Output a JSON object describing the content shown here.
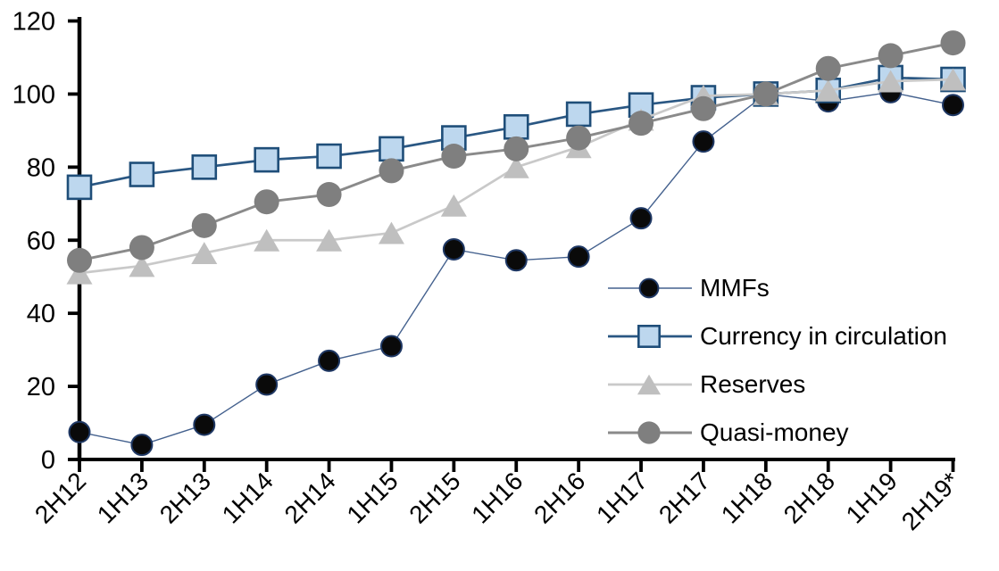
{
  "chart_data": {
    "type": "line",
    "title": "",
    "xlabel": "",
    "ylabel": "",
    "ylim": [
      0,
      120
    ],
    "yticks": [
      0,
      20,
      40,
      60,
      80,
      100,
      120
    ],
    "grid": false,
    "legend_position": "inside-right",
    "background_color": "#FFFFFF",
    "axis_color": "#000000",
    "categories": [
      "2H12",
      "1H13",
      "2H13",
      "1H14",
      "2H14",
      "1H15",
      "2H15",
      "1H16",
      "2H16",
      "1H17",
      "2H17",
      "1H18",
      "2H18",
      "1H19",
      "2H19*"
    ],
    "series": [
      {
        "name": "MMFs",
        "marker": "circle",
        "values": [
          7.5,
          4,
          9.5,
          20.5,
          27,
          31,
          57.5,
          54.5,
          55.5,
          66,
          87,
          100,
          98,
          100.5,
          97
        ],
        "line_color": "#44618E",
        "line_width": 1.4,
        "marker_fill": "#0A0A0A",
        "marker_stroke": "#1F3864",
        "marker_stroke_width": 2,
        "marker_size": 23
      },
      {
        "name": "Currency in circulation",
        "marker": "square",
        "values": [
          74.5,
          78,
          80,
          82,
          83,
          85,
          88,
          91,
          94.5,
          97,
          99,
          100,
          101,
          104.5,
          104
        ],
        "line_color": "#2A5783",
        "line_width": 2.7,
        "marker_fill": "#BDD7EE",
        "marker_stroke": "#1F4E79",
        "marker_stroke_width": 2.6,
        "marker_size": 26
      },
      {
        "name": "Reserves",
        "marker": "triangle",
        "values": [
          51,
          53,
          56.5,
          60,
          60,
          62,
          69.5,
          80,
          85.5,
          93,
          99.5,
          100,
          101,
          103.5,
          104
        ],
        "line_color": "#C9C9C9",
        "line_width": 2.7,
        "marker_fill": "#BFBFBF",
        "marker_stroke": "none",
        "marker_stroke_width": 0,
        "marker_size": 29
      },
      {
        "name": "Quasi-money",
        "marker": "circle",
        "values": [
          54.5,
          58,
          64,
          70.5,
          72.5,
          79,
          83,
          85,
          88,
          92,
          96,
          100,
          107,
          110.5,
          114
        ],
        "line_color": "#8A8A8A",
        "line_width": 2.9,
        "marker_fill": "#7F7F7F",
        "marker_stroke": "none",
        "marker_stroke_width": 0,
        "marker_size": 28
      }
    ]
  }
}
